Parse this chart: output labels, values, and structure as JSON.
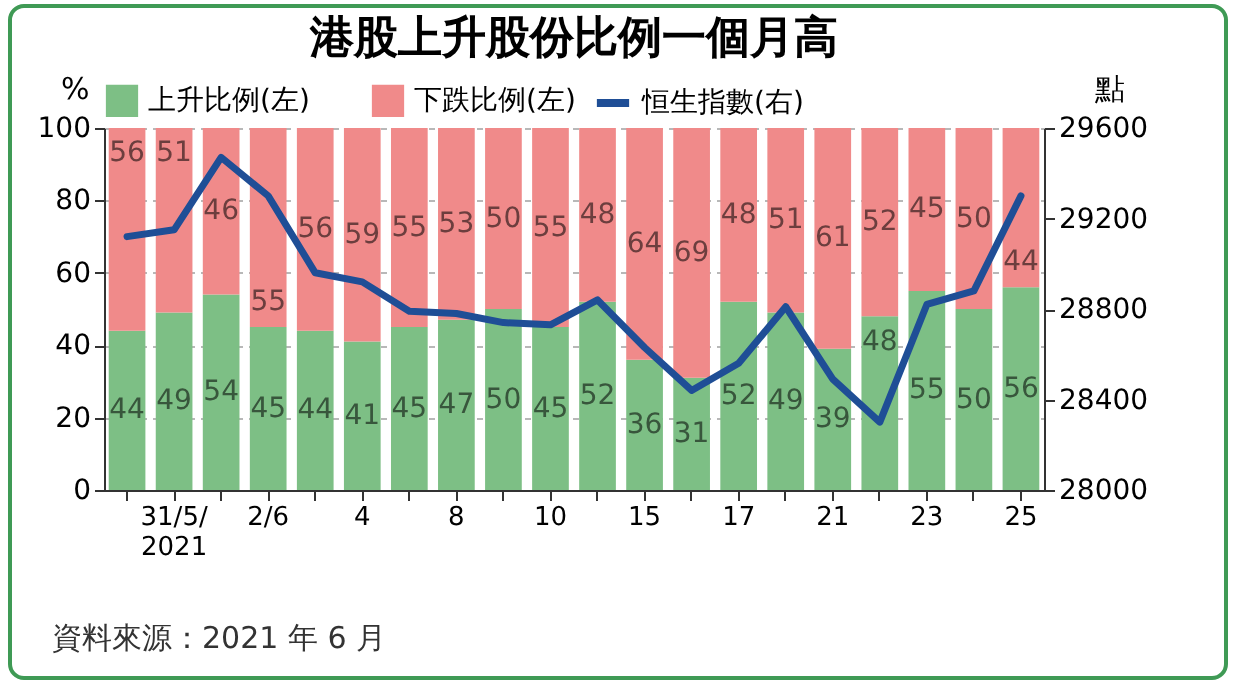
{
  "chart_data": {
    "type": "bar",
    "title": "港股上升股份比例一個月高",
    "ylabel": "%",
    "y2label": "點",
    "categories": [
      null,
      "31/5/\n2021",
      null,
      "2/6",
      null,
      "4",
      null,
      "8",
      null,
      "10",
      null,
      "15",
      null,
      "17",
      null,
      "21",
      null,
      "23",
      null,
      "25"
    ],
    "stacked": true,
    "legend": "top",
    "grid": "y",
    "ylim": [
      0,
      100
    ],
    "yticks": [
      0,
      20,
      40,
      60,
      80,
      100
    ],
    "y2lim": [
      28000,
      29600
    ],
    "y2ticks": [
      28000,
      28400,
      28800,
      29200,
      29600
    ],
    "series": [
      {
        "name": "上升比例(左)",
        "color": "#7dbf85",
        "values": [
          44,
          49,
          54,
          45,
          44,
          41,
          45,
          47,
          50,
          45,
          52,
          36,
          31,
          52,
          49,
          39,
          48,
          55,
          50,
          56
        ],
        "value_labels": [
          "44",
          "49",
          "54",
          "45",
          "44",
          "41",
          "45",
          "47",
          "50",
          "45",
          "52",
          "36",
          "31",
          "52",
          "49",
          "39",
          "48",
          "55",
          "50",
          "56"
        ]
      },
      {
        "name": "下跌比例(左)",
        "color": "#f08a8a",
        "values": [
          56,
          51,
          46,
          55,
          56,
          59,
          55,
          53,
          50,
          55,
          48,
          64,
          69,
          48,
          51,
          61,
          52,
          45,
          50,
          44
        ],
        "value_labels": [
          "56",
          "51",
          "46",
          "55",
          "56",
          "59",
          "55",
          "53",
          "50",
          "55",
          "48",
          "64",
          "69",
          "48",
          "51",
          "61",
          "52",
          "45",
          "50",
          "44"
        ]
      },
      {
        "name": "恒生指數(右)",
        "type": "line",
        "axis": "y2",
        "color": "#1f4e96",
        "values": [
          29120,
          29150,
          29470,
          29300,
          28960,
          28920,
          28790,
          28780,
          28740,
          28730,
          28840,
          28630,
          28440,
          28560,
          28810,
          28490,
          28300,
          28820,
          28880,
          29300
        ]
      }
    ],
    "annotations": [
      "資料來源：2021 年 6 月"
    ]
  }
}
